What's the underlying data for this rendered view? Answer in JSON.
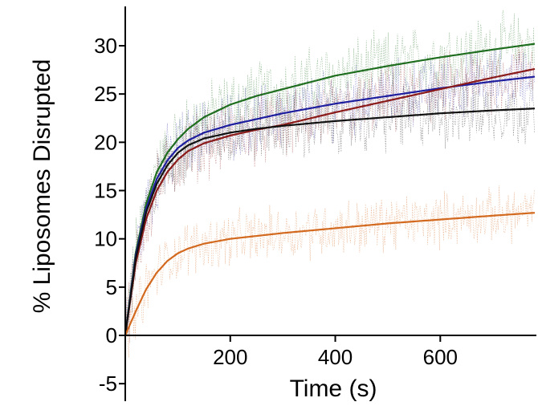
{
  "chart_data": {
    "type": "line",
    "title": "",
    "xlabel": "Time (s)",
    "ylabel": "% Liposomes Disrupted",
    "xlim": [
      0,
      780
    ],
    "ylim": [
      -7,
      34
    ],
    "x_ticks": [
      200,
      400,
      600
    ],
    "y_ticks": [
      -5,
      0,
      5,
      10,
      15,
      20,
      25,
      30
    ],
    "grid": false,
    "legend": "none",
    "fit_x": [
      0,
      20,
      40,
      60,
      80,
      100,
      120,
      150,
      200,
      250,
      300,
      400,
      500,
      600,
      700,
      780
    ],
    "series": [
      {
        "color": "#1f6e1f",
        "fit": [
          0,
          8.6,
          13.7,
          16.9,
          18.9,
          20.3,
          21.4,
          22.6,
          23.9,
          24.8,
          25.5,
          26.9,
          27.9,
          28.8,
          29.6,
          30.2
        ]
      },
      {
        "color": "#1d1d9e",
        "fit": [
          0,
          8.3,
          13.2,
          16.2,
          18.1,
          19.4,
          20.2,
          21.0,
          21.8,
          22.4,
          23.0,
          24.0,
          24.8,
          25.6,
          26.3,
          26.8
        ]
      },
      {
        "color": "#8b1a1a",
        "fit": [
          0,
          7.5,
          12.1,
          15.0,
          16.9,
          18.2,
          19.1,
          19.9,
          20.7,
          21.3,
          21.8,
          23.1,
          24.3,
          25.5,
          26.7,
          27.6
        ]
      },
      {
        "color": "#111111",
        "fit": [
          0,
          8.0,
          12.8,
          15.7,
          17.6,
          18.9,
          19.7,
          20.4,
          21.0,
          21.4,
          21.7,
          22.2,
          22.6,
          23.0,
          23.3,
          23.5
        ]
      },
      {
        "color": "#d2691e",
        "fit": [
          0,
          2.5,
          4.8,
          6.5,
          7.7,
          8.5,
          9.0,
          9.5,
          10.0,
          10.3,
          10.6,
          11.1,
          11.6,
          12.0,
          12.4,
          12.7
        ]
      }
    ]
  }
}
